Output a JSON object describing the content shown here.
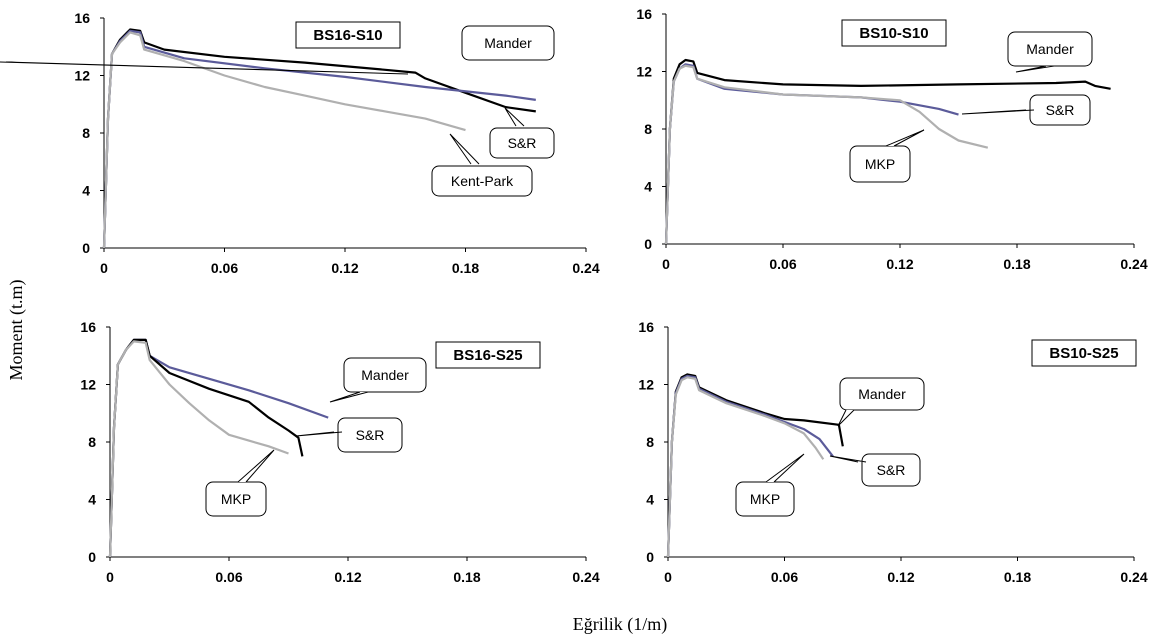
{
  "figure": {
    "ylabel": "Moment (t.m)",
    "xlabel": "Eğrilik (1/m)"
  },
  "chart_data": [
    {
      "type": "line",
      "title": "BS16-S10",
      "xlim": [
        0,
        0.24
      ],
      "ylim": [
        0,
        16
      ],
      "xticks": [
        "0",
        "0.06",
        "0.12",
        "0.18",
        "0.24"
      ],
      "yticks": [
        "0",
        "4",
        "8",
        "12",
        "16"
      ],
      "series": [
        {
          "name": "Mander",
          "color": "#000000",
          "points": [
            [
              0,
              0
            ],
            [
              0.002,
              9
            ],
            [
              0.004,
              13.5
            ],
            [
              0.008,
              14.5
            ],
            [
              0.013,
              15.2
            ],
            [
              0.018,
              15.1
            ],
            [
              0.02,
              14.3
            ],
            [
              0.03,
              13.8
            ],
            [
              0.06,
              13.3
            ],
            [
              0.1,
              12.9
            ],
            [
              0.14,
              12.4
            ],
            [
              0.155,
              12.2
            ],
            [
              0.16,
              11.8
            ],
            [
              0.18,
              10.8
            ],
            [
              0.2,
              9.8
            ],
            [
              0.215,
              9.5
            ]
          ]
        },
        {
          "name": "S&R",
          "color": "#5b5b9a",
          "points": [
            [
              0,
              0
            ],
            [
              0.002,
              9
            ],
            [
              0.004,
              13.5
            ],
            [
              0.008,
              14.4
            ],
            [
              0.013,
              15.1
            ],
            [
              0.018,
              15.0
            ],
            [
              0.02,
              14.0
            ],
            [
              0.04,
              13.2
            ],
            [
              0.08,
              12.5
            ],
            [
              0.12,
              11.9
            ],
            [
              0.16,
              11.2
            ],
            [
              0.2,
              10.6
            ],
            [
              0.215,
              10.3
            ]
          ]
        },
        {
          "name": "Kent-Park",
          "color": "#b0b0b0",
          "points": [
            [
              0,
              0
            ],
            [
              0.002,
              9
            ],
            [
              0.004,
              13.5
            ],
            [
              0.008,
              14.3
            ],
            [
              0.013,
              15.0
            ],
            [
              0.018,
              14.8
            ],
            [
              0.02,
              13.8
            ],
            [
              0.04,
              13.0
            ],
            [
              0.06,
              12.0
            ],
            [
              0.08,
              11.2
            ],
            [
              0.1,
              10.6
            ],
            [
              0.12,
              10.0
            ],
            [
              0.14,
              9.5
            ],
            [
              0.16,
              9.0
            ],
            [
              0.18,
              8.2
            ]
          ]
        }
      ],
      "annotations": [
        {
          "text": "BS16-S10"
        },
        {
          "text": "Mander"
        },
        {
          "text": "S&R"
        },
        {
          "text": "Kent-Park"
        }
      ]
    },
    {
      "type": "line",
      "title": "BS10-S10",
      "xlim": [
        0,
        0.24
      ],
      "ylim": [
        0,
        16
      ],
      "xticks": [
        "0",
        "0.06",
        "0.12",
        "0.18",
        "0.24"
      ],
      "yticks": [
        "0",
        "4",
        "8",
        "12",
        "16"
      ],
      "series": [
        {
          "name": "Mander",
          "color": "#000000",
          "points": [
            [
              0,
              0
            ],
            [
              0.002,
              8
            ],
            [
              0.004,
              11.5
            ],
            [
              0.007,
              12.5
            ],
            [
              0.01,
              12.8
            ],
            [
              0.014,
              12.7
            ],
            [
              0.016,
              11.9
            ],
            [
              0.03,
              11.4
            ],
            [
              0.06,
              11.1
            ],
            [
              0.1,
              11.0
            ],
            [
              0.15,
              11.1
            ],
            [
              0.2,
              11.2
            ],
            [
              0.215,
              11.3
            ],
            [
              0.22,
              11.0
            ],
            [
              0.228,
              10.8
            ]
          ]
        },
        {
          "name": "S&R",
          "color": "#5b5b9a",
          "points": [
            [
              0,
              0
            ],
            [
              0.002,
              8
            ],
            [
              0.004,
              11.3
            ],
            [
              0.007,
              12.2
            ],
            [
              0.01,
              12.5
            ],
            [
              0.014,
              12.4
            ],
            [
              0.016,
              11.5
            ],
            [
              0.03,
              10.8
            ],
            [
              0.06,
              10.4
            ],
            [
              0.1,
              10.2
            ],
            [
              0.12,
              9.9
            ],
            [
              0.14,
              9.4
            ],
            [
              0.15,
              9.0
            ]
          ]
        },
        {
          "name": "MKP",
          "color": "#b0b0b0",
          "points": [
            [
              0,
              0
            ],
            [
              0.002,
              8
            ],
            [
              0.004,
              11.3
            ],
            [
              0.007,
              12.2
            ],
            [
              0.01,
              12.4
            ],
            [
              0.014,
              12.3
            ],
            [
              0.016,
              11.5
            ],
            [
              0.03,
              10.9
            ],
            [
              0.06,
              10.4
            ],
            [
              0.1,
              10.2
            ],
            [
              0.12,
              10.0
            ],
            [
              0.13,
              9.2
            ],
            [
              0.14,
              8.0
            ],
            [
              0.15,
              7.2
            ],
            [
              0.165,
              6.7
            ]
          ]
        }
      ],
      "annotations": [
        {
          "text": "BS10-S10"
        },
        {
          "text": "Mander"
        },
        {
          "text": "S&R"
        },
        {
          "text": "MKP"
        }
      ]
    },
    {
      "type": "line",
      "title": "BS16-S25",
      "xlim": [
        0,
        0.24
      ],
      "ylim": [
        0,
        16
      ],
      "xticks": [
        "0",
        "0.06",
        "0.12",
        "0.18",
        "0.24"
      ],
      "yticks": [
        "0",
        "4",
        "8",
        "12",
        "16"
      ],
      "series": [
        {
          "name": "Mander",
          "color": "#5b5b9a",
          "points": [
            [
              0,
              0
            ],
            [
              0.002,
              9
            ],
            [
              0.004,
              13.4
            ],
            [
              0.008,
              14.4
            ],
            [
              0.012,
              15.1
            ],
            [
              0.018,
              15.1
            ],
            [
              0.02,
              14.0
            ],
            [
              0.03,
              13.2
            ],
            [
              0.05,
              12.4
            ],
            [
              0.07,
              11.6
            ],
            [
              0.09,
              10.7
            ],
            [
              0.11,
              9.7
            ]
          ]
        },
        {
          "name": "S&R",
          "color": "#000000",
          "points": [
            [
              0,
              0
            ],
            [
              0.002,
              9
            ],
            [
              0.004,
              13.4
            ],
            [
              0.008,
              14.4
            ],
            [
              0.012,
              15.1
            ],
            [
              0.018,
              15.1
            ],
            [
              0.02,
              14.0
            ],
            [
              0.03,
              12.8
            ],
            [
              0.05,
              11.7
            ],
            [
              0.07,
              10.8
            ],
            [
              0.08,
              9.7
            ],
            [
              0.09,
              8.8
            ],
            [
              0.095,
              8.3
            ],
            [
              0.097,
              7.0
            ]
          ]
        },
        {
          "name": "MKP",
          "color": "#b0b0b0",
          "points": [
            [
              0,
              0
            ],
            [
              0.002,
              9
            ],
            [
              0.004,
              13.4
            ],
            [
              0.008,
              14.4
            ],
            [
              0.012,
              15.0
            ],
            [
              0.018,
              14.9
            ],
            [
              0.02,
              13.7
            ],
            [
              0.03,
              12.0
            ],
            [
              0.04,
              10.7
            ],
            [
              0.05,
              9.5
            ],
            [
              0.06,
              8.5
            ],
            [
              0.07,
              8.1
            ],
            [
              0.08,
              7.7
            ],
            [
              0.09,
              7.2
            ]
          ]
        }
      ],
      "annotations": [
        {
          "text": "BS16-S25"
        },
        {
          "text": "Mander"
        },
        {
          "text": "S&R"
        },
        {
          "text": "MKP"
        }
      ]
    },
    {
      "type": "line",
      "title": "BS10-S25",
      "xlim": [
        0,
        0.24
      ],
      "ylim": [
        0,
        16
      ],
      "xticks": [
        "0",
        "0.06",
        "0.12",
        "0.18",
        "0.24"
      ],
      "yticks": [
        "0",
        "4",
        "8",
        "12",
        "16"
      ],
      "series": [
        {
          "name": "Mander",
          "color": "#000000",
          "points": [
            [
              0,
              0
            ],
            [
              0.002,
              8
            ],
            [
              0.004,
              11.5
            ],
            [
              0.007,
              12.5
            ],
            [
              0.01,
              12.7
            ],
            [
              0.014,
              12.6
            ],
            [
              0.016,
              11.8
            ],
            [
              0.03,
              10.9
            ],
            [
              0.05,
              10.0
            ],
            [
              0.06,
              9.6
            ],
            [
              0.07,
              9.5
            ],
            [
              0.088,
              9.2
            ],
            [
              0.09,
              7.7
            ]
          ]
        },
        {
          "name": "S&R",
          "color": "#5b5b9a",
          "points": [
            [
              0,
              0
            ],
            [
              0.002,
              8
            ],
            [
              0.004,
              11.4
            ],
            [
              0.007,
              12.4
            ],
            [
              0.01,
              12.6
            ],
            [
              0.014,
              12.5
            ],
            [
              0.016,
              11.7
            ],
            [
              0.03,
              10.8
            ],
            [
              0.05,
              9.9
            ],
            [
              0.06,
              9.4
            ],
            [
              0.07,
              8.9
            ],
            [
              0.078,
              8.2
            ],
            [
              0.085,
              7.0
            ]
          ]
        },
        {
          "name": "MKP",
          "color": "#b0b0b0",
          "points": [
            [
              0,
              0
            ],
            [
              0.002,
              8
            ],
            [
              0.004,
              11.3
            ],
            [
              0.007,
              12.3
            ],
            [
              0.01,
              12.5
            ],
            [
              0.014,
              12.4
            ],
            [
              0.016,
              11.6
            ],
            [
              0.03,
              10.7
            ],
            [
              0.05,
              9.8
            ],
            [
              0.06,
              9.3
            ],
            [
              0.07,
              8.6
            ],
            [
              0.076,
              7.6
            ],
            [
              0.08,
              6.8
            ]
          ]
        }
      ],
      "annotations": [
        {
          "text": "BS10-S25"
        },
        {
          "text": "Mander"
        },
        {
          "text": "S&R"
        },
        {
          "text": "MKP"
        }
      ]
    }
  ]
}
